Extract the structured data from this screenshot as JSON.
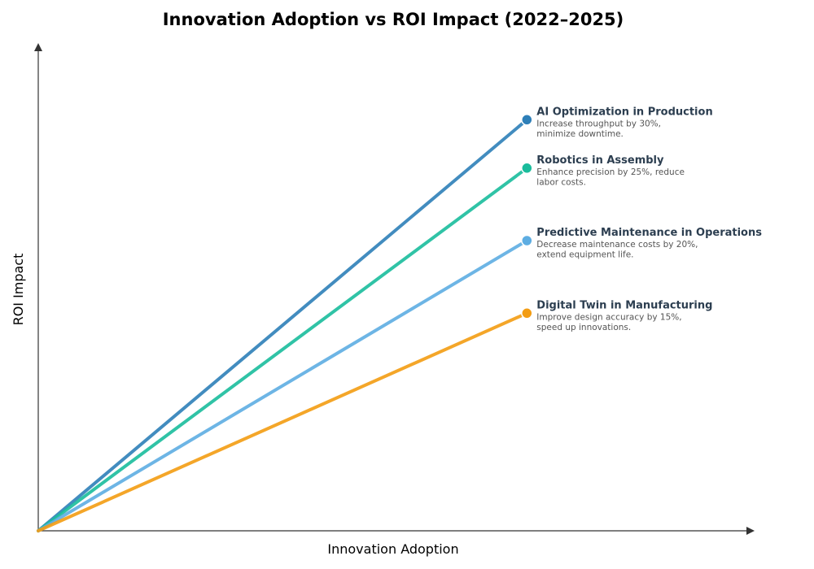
{
  "chart_data": {
    "type": "line",
    "title": "Innovation Adoption vs ROI Impact (2022–2025)",
    "xlabel": "Innovation Adoption",
    "ylabel": "ROI Impact",
    "xlim": [
      0,
      1
    ],
    "ylim": [
      0,
      1
    ],
    "grid": false,
    "legend": "inline-right-labels",
    "series": [
      {
        "name": "AI Optimization in Production",
        "description_lines": [
          "Increase throughput by 30%,",
          "minimize downtime."
        ],
        "color": "#2e7fb8",
        "x": [
          0,
          0.686
        ],
        "y": [
          0,
          0.85
        ]
      },
      {
        "name": "Robotics in Assembly",
        "description_lines": [
          "Enhance precision by 25%, reduce",
          "labor costs."
        ],
        "color": "#1abc9c",
        "x": [
          0,
          0.686
        ],
        "y": [
          0,
          0.75
        ]
      },
      {
        "name": "Predictive Maintenance in Operations",
        "description_lines": [
          "Decrease maintenance costs by 20%,",
          "extend equipment life."
        ],
        "color": "#5dade2",
        "x": [
          0,
          0.686
        ],
        "y": [
          0,
          0.6
        ]
      },
      {
        "name": "Digital Twin in Manufacturing",
        "description_lines": [
          "Improve design accuracy by 15%,",
          "speed up innovations."
        ],
        "color": "#f39c12",
        "x": [
          0,
          0.686
        ],
        "y": [
          0,
          0.45
        ]
      }
    ]
  }
}
